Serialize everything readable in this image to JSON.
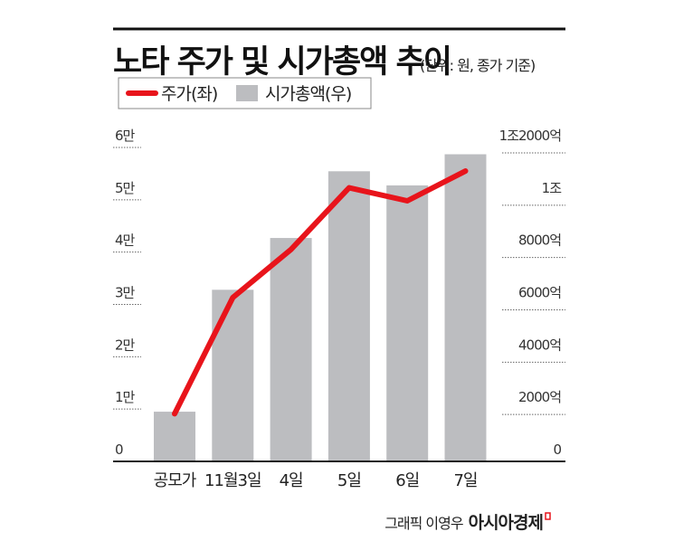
{
  "chart_data": {
    "type": "bar+line",
    "title": "노타 주가 및 시가총액 추이",
    "subtitle": "(단위: 원, 종가 기준)",
    "categories": [
      "공모가",
      "11월3일",
      "4일",
      "5일",
      "6일",
      "7일"
    ],
    "series": [
      {
        "name": "주가(좌)",
        "type": "line",
        "axis": "left",
        "color": "#e8141b",
        "values": [
          9100,
          31300,
          40500,
          52300,
          49800,
          55500
        ]
      },
      {
        "name": "시가총액(우)",
        "type": "bar",
        "axis": "right",
        "color": "#bcbdc0",
        "values_eok": [
          1900,
          6560,
          8540,
          11090,
          10550,
          11740
        ]
      }
    ],
    "left_axis": {
      "range": [
        0,
        60000
      ],
      "ticks": [
        0,
        10000,
        20000,
        30000,
        40000,
        50000,
        60000
      ],
      "tick_labels": [
        "0",
        "1만",
        "2만",
        "3만",
        "4만",
        "5만",
        "6만"
      ]
    },
    "right_axis": {
      "range": [
        0,
        12000
      ],
      "ticks": [
        0,
        2000,
        4000,
        6000,
        8000,
        10000,
        12000
      ],
      "tick_labels": [
        "0",
        "2000억",
        "4000억",
        "6000억",
        "8000억",
        "1조",
        "1조2000억"
      ]
    },
    "grid": false,
    "legend": {
      "placement": "top-left",
      "entries": [
        "주가(좌)",
        "시가총액(우)"
      ]
    }
  },
  "credit": {
    "graphic": "그래픽 이영우",
    "brand": "아시아경제"
  }
}
